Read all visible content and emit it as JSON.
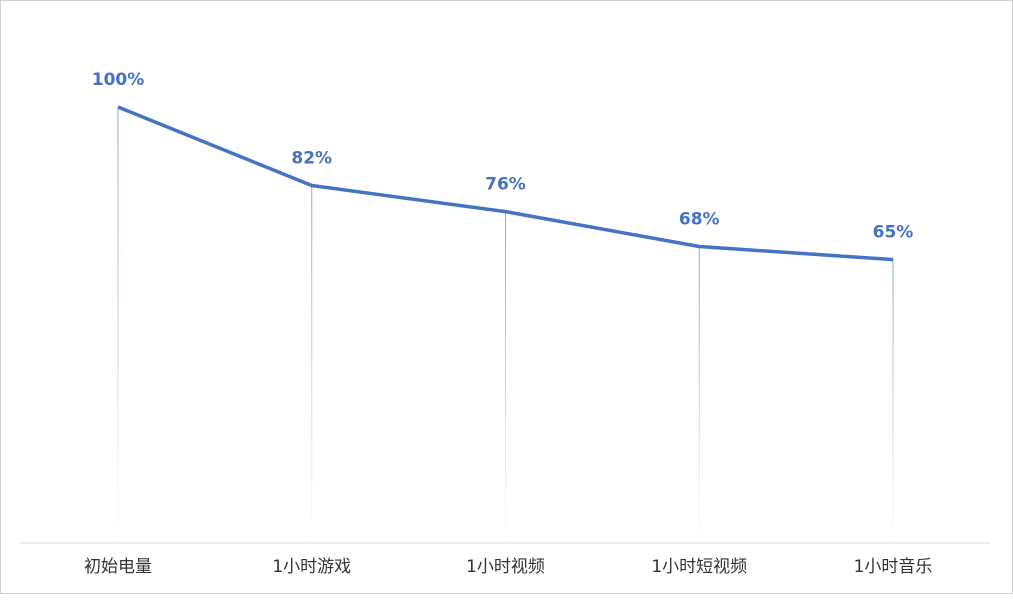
{
  "chart_data": {
    "type": "line",
    "categories": [
      "初始电量",
      "1小时游戏",
      "1小时视频",
      "1小时短视频",
      "1小时音乐"
    ],
    "values": [
      100,
      82,
      76,
      68,
      65
    ],
    "value_labels": [
      "100%",
      "82%",
      "76%",
      "68%",
      "65%"
    ],
    "color": "#4472c4",
    "ylim": [
      0,
      100
    ]
  }
}
